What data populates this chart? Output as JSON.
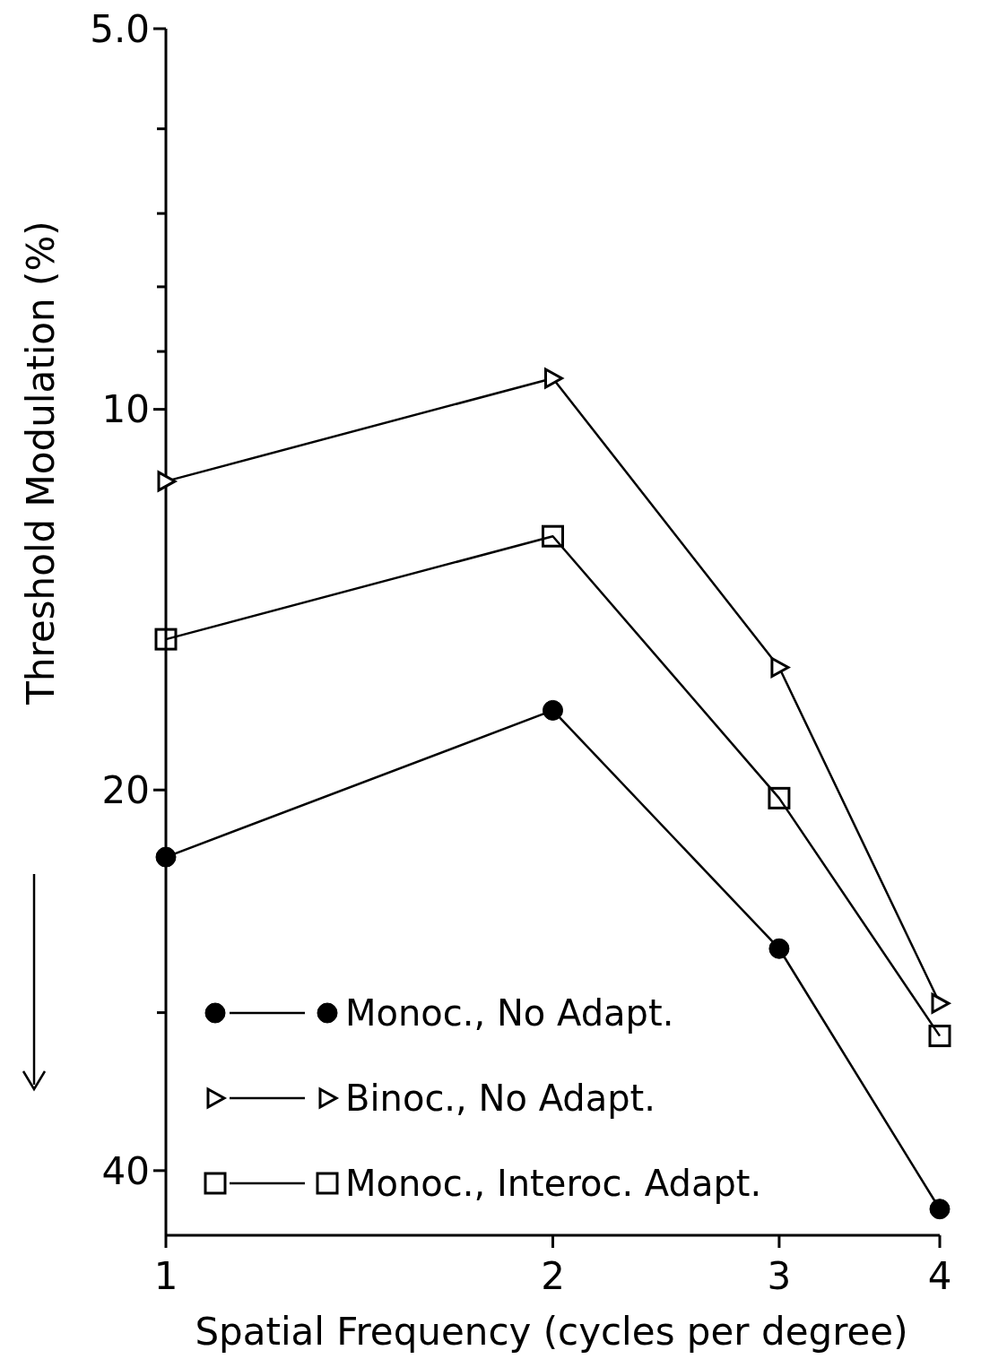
{
  "chart_data": {
    "type": "line",
    "xlabel": "Spatial Frequency (cycles per degree)",
    "ylabel": "Threshold Modulation  (%)",
    "log": "xy",
    "x": [
      1,
      2,
      3,
      4
    ],
    "xlim": [
      1,
      4
    ],
    "xticks": [
      1,
      2,
      3,
      4
    ],
    "ylim": [
      45,
      5
    ],
    "yticks": [
      {
        "value": 5,
        "label": "5.0"
      },
      {
        "value": 6,
        "label": null
      },
      {
        "value": 7,
        "label": null
      },
      {
        "value": 8,
        "label": null
      },
      {
        "value": 9,
        "label": null
      },
      10,
      20,
      {
        "value": 30,
        "label": null
      },
      40
    ],
    "line_style": "solid",
    "legend": "bottom left",
    "grid": false,
    "series": [
      {
        "name": "Monoc., No Adapt.",
        "color": "#000000",
        "marker": "circle",
        "values": [
          22.6,
          17.3,
          26.7,
          42.9
        ]
      },
      {
        "name": "Binoc., No Adapt.",
        "color": "#000000",
        "marker": "triangle",
        "values": [
          11.4,
          9.45,
          16.0,
          29.5
        ]
      },
      {
        "name": "Monoc., Interoc. Adapt.",
        "color": "#000000",
        "marker": "square",
        "values": [
          15.2,
          12.6,
          20.3,
          31.3
        ]
      }
    ]
  }
}
